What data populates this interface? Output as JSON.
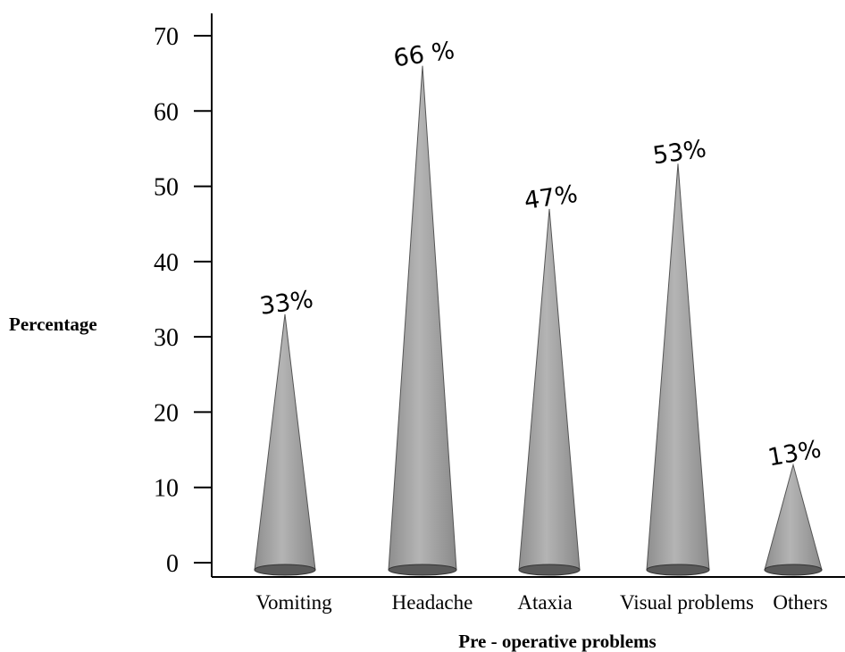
{
  "chart_data": {
    "type": "bar",
    "title": "",
    "xlabel": "Pre - operative problems",
    "ylabel": "Percentage",
    "categories": [
      "Vomiting",
      "Headache",
      "Ataxia",
      "Visual problems",
      "Others"
    ],
    "values": [
      33,
      66,
      47,
      53,
      13
    ],
    "data_labels": [
      "33%",
      "66 %",
      "47%",
      "53%",
      "13%"
    ],
    "y_ticks": [
      0,
      10,
      20,
      30,
      40,
      50,
      60,
      70
    ],
    "ylim": [
      0,
      70
    ],
    "grid": false,
    "legend": "none",
    "mark_shape": "cone",
    "colors": {
      "cone_fill": "#a6a6a6",
      "cone_base": "#5a5a5a",
      "axis": "#000000"
    }
  }
}
